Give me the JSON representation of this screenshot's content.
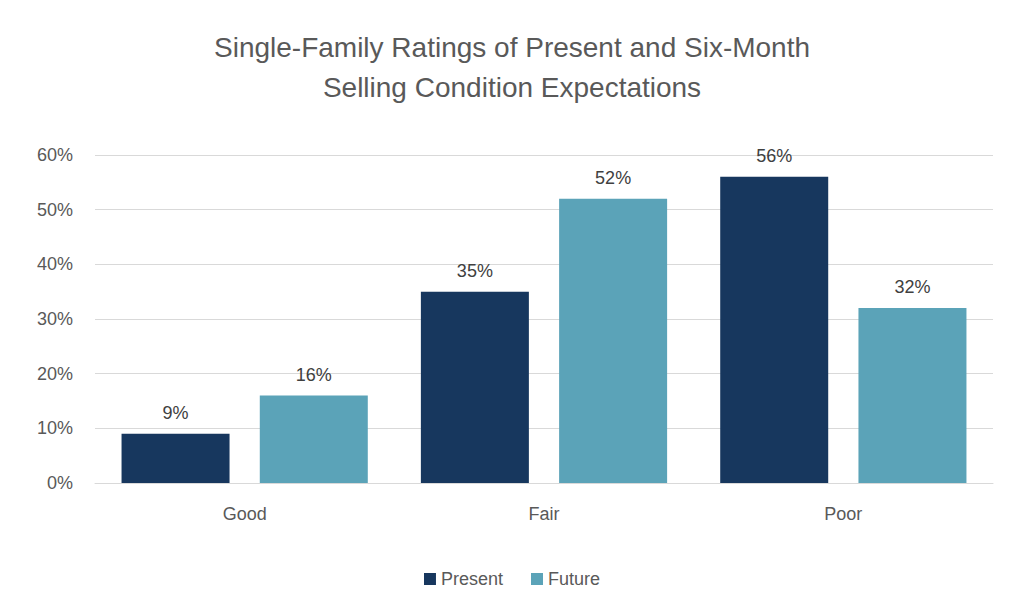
{
  "chart_data": {
    "type": "bar",
    "title": "Single-Family Ratings of Present and Six-Month\nSelling Condition Expectations",
    "categories": [
      "Good",
      "Fair",
      "Poor"
    ],
    "series": [
      {
        "name": "Present",
        "color": "#17375e",
        "values": [
          9,
          35,
          56
        ],
        "value_labels": [
          "9%",
          "35%",
          "56%"
        ]
      },
      {
        "name": "Future",
        "color": "#5ba3b8",
        "values": [
          16,
          52,
          32
        ],
        "value_labels": [
          "16%",
          "52%",
          "32%"
        ]
      }
    ],
    "ylim": [
      0,
      60
    ],
    "yticks": [
      {
        "value": 0,
        "label": "0%"
      },
      {
        "value": 10,
        "label": "10%"
      },
      {
        "value": 20,
        "label": "20%"
      },
      {
        "value": 30,
        "label": "30%"
      },
      {
        "value": 40,
        "label": "40%"
      },
      {
        "value": 50,
        "label": "50%"
      },
      {
        "value": 60,
        "label": "60%"
      }
    ],
    "grid": true,
    "legend": "bottom",
    "data_labels": true
  }
}
